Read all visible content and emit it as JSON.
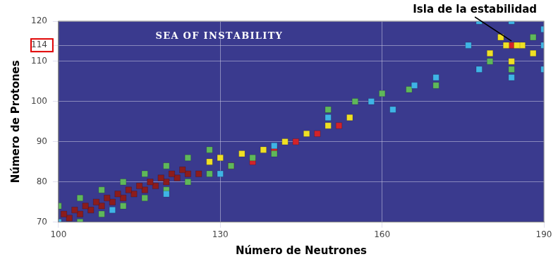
{
  "chart_data": {
    "type": "scatter",
    "x_label": "Número de Neutrones",
    "y_label": "Número de Protones",
    "annotations": [
      "SEA OF INSTABILITY",
      "Isla de la estabilidad"
    ],
    "xlim": [
      100,
      190
    ],
    "xticks": [
      100,
      130,
      160,
      190
    ],
    "ylim": [
      70,
      120
    ],
    "yticks": [
      70,
      80,
      90,
      100,
      110,
      114,
      120
    ],
    "grid": true,
    "marker": "square",
    "series": [
      {
        "color": "#3fb4e6",
        "x": [
          100,
          110,
          120,
          130,
          140,
          150,
          158,
          162,
          166,
          170,
          176,
          178,
          178,
          184,
          184,
          190,
          190,
          190
        ],
        "values": [
          70,
          73,
          77,
          82,
          89,
          96,
          100,
          98,
          104,
          106,
          114,
          108,
          120,
          106,
          120,
          108,
          118,
          114
        ]
      },
      {
        "color": "#5fb85a",
        "x": [
          104,
          108,
          112,
          116,
          120,
          124,
          128,
          132,
          136,
          140,
          100,
          104,
          108,
          112,
          116,
          120,
          124,
          128,
          150,
          155,
          160,
          165,
          170,
          180,
          188,
          184
        ],
        "values": [
          70,
          72,
          74,
          76,
          78,
          80,
          82,
          84,
          86,
          87,
          74,
          76,
          78,
          80,
          82,
          84,
          86,
          88,
          98,
          100,
          102,
          103,
          104,
          110,
          116,
          108
        ]
      },
      {
        "color": "#efe024",
        "x": [
          128,
          130,
          134,
          138,
          142,
          146,
          150,
          154,
          180,
          182,
          184,
          186,
          188,
          183,
          185
        ],
        "values": [
          85,
          86,
          87,
          88,
          90,
          92,
          94,
          96,
          112,
          116,
          110,
          114,
          112,
          114,
          114
        ]
      },
      {
        "color": "#d2232a",
        "x": [
          132,
          136,
          140,
          144,
          148,
          152,
          184
        ],
        "values": [
          84,
          85,
          88,
          90,
          92,
          94,
          114
        ]
      },
      {
        "color": "#8c1c1c",
        "x": [
          100,
          102,
          104,
          106,
          108,
          110,
          112,
          114,
          116,
          118,
          120,
          122,
          124,
          126,
          101,
          103,
          105,
          107,
          109,
          111,
          113,
          115,
          117,
          119,
          121,
          123
        ],
        "values": [
          70,
          71,
          72,
          73,
          74,
          75,
          76,
          77,
          78,
          79,
          80,
          81,
          82,
          82,
          72,
          73,
          74,
          75,
          76,
          77,
          78,
          79,
          80,
          81,
          82,
          83
        ]
      }
    ]
  }
}
